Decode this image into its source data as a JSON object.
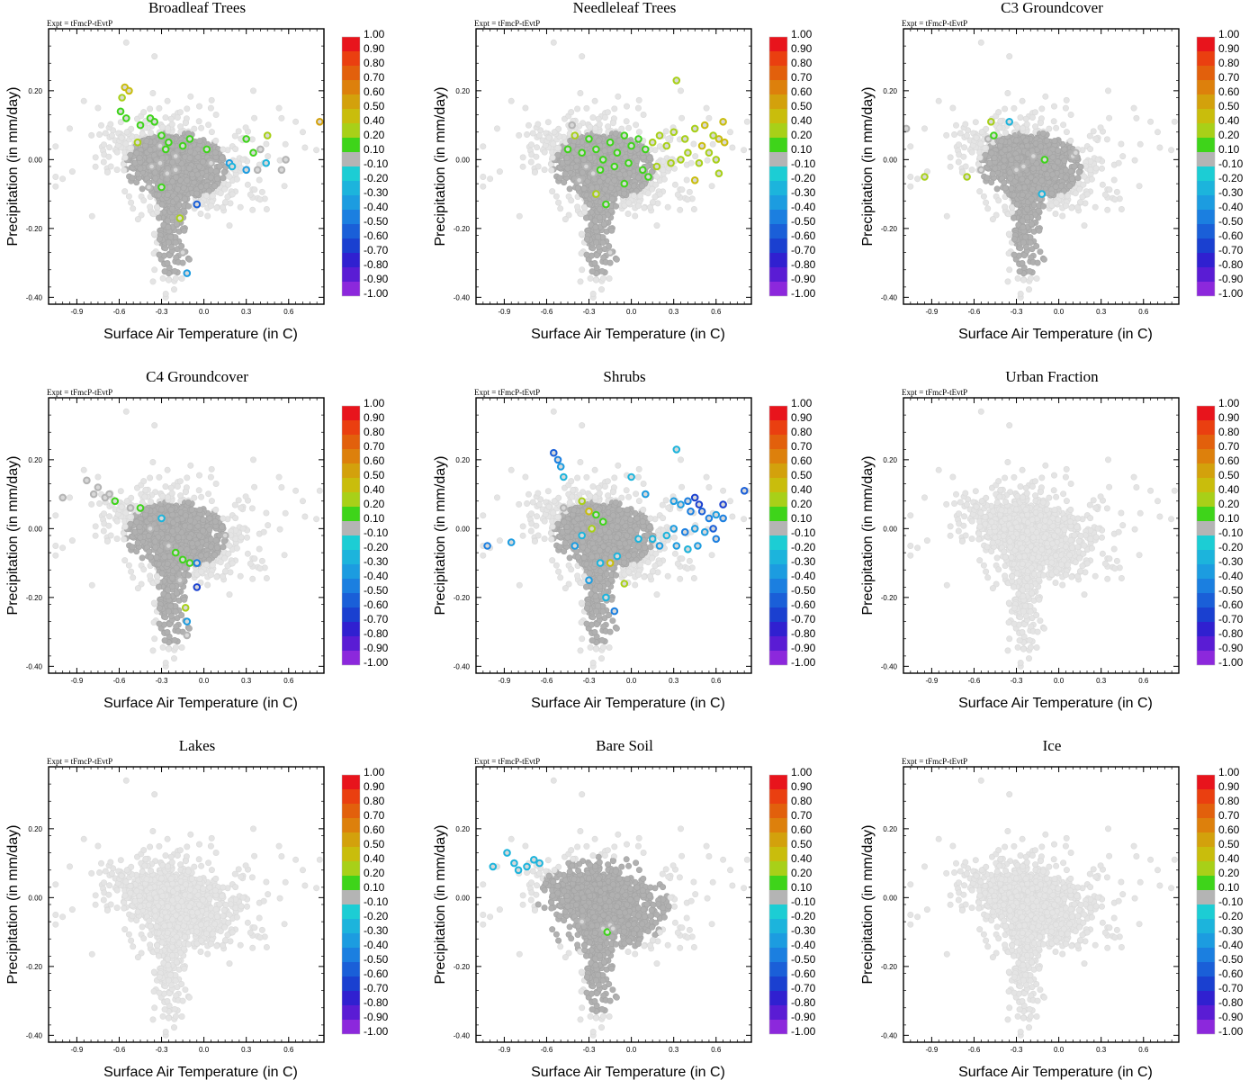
{
  "chart_data": {
    "type": "scatter",
    "layout": "3x3 grid of scatter panels",
    "experiment_label": "Expt = tFmcP-tEvtP",
    "xlabel": "Surface Air Temperature (in C)",
    "ylabel": "Precipitation (in mm/day)",
    "xlim": [
      -1.1,
      0.85
    ],
    "ylim": [
      -0.42,
      0.38
    ],
    "xticks": [
      "-0.9",
      "-0.6",
      "-0.3",
      "0.0",
      "0.3",
      "0.6"
    ],
    "xtick_values": [
      -0.9,
      -0.6,
      -0.3,
      0.0,
      0.3,
      0.6
    ],
    "yticks": [
      "-0.40",
      "-0.20",
      "0.00",
      "0.20"
    ],
    "ytick_values": [
      -0.4,
      -0.2,
      0.0,
      0.2
    ],
    "colorbar": {
      "labels": [
        "1.00",
        "0.90",
        "0.80",
        "0.70",
        "0.60",
        "0.50",
        "0.40",
        "0.20",
        "0.10",
        "-0.10",
        "-0.20",
        "-0.30",
        "-0.40",
        "-0.50",
        "-0.60",
        "-0.70",
        "-0.80",
        "-0.90",
        "-1.00"
      ],
      "colors": [
        "#e8141c",
        "#ea3f10",
        "#e2600c",
        "#dd800c",
        "#d3a10c",
        "#c9bd0c",
        "#a8d018",
        "#3ed41a",
        "#b4b4b4",
        "#1ccdd4",
        "#1cb4dc",
        "#1c9ce0",
        "#1b7fe0",
        "#1a5fd8",
        "#1a40d0",
        "#3020d0",
        "#5a1cd4",
        "#8c28dc"
      ]
    },
    "background_color": "#e4e4e4",
    "neutral_color": "#b0b0b0",
    "panels": [
      {
        "title": "Broadleaf Trees",
        "gray_band": "mid",
        "colored_points": [
          {
            "x": -0.56,
            "y": 0.21,
            "c": 0.5
          },
          {
            "x": -0.53,
            "y": 0.2,
            "c": 0.5
          },
          {
            "x": -0.58,
            "y": 0.18,
            "c": 0.4
          },
          {
            "x": -0.59,
            "y": 0.14,
            "c": 0.2
          },
          {
            "x": -0.55,
            "y": 0.12,
            "c": 0.2
          },
          {
            "x": -0.38,
            "y": 0.12,
            "c": 0.2
          },
          {
            "x": -0.35,
            "y": 0.11,
            "c": 0.2
          },
          {
            "x": -0.45,
            "y": 0.1,
            "c": 0.2
          },
          {
            "x": -0.3,
            "y": 0.07,
            "c": 0.2
          },
          {
            "x": -0.25,
            "y": 0.05,
            "c": 0.2
          },
          {
            "x": -0.47,
            "y": 0.05,
            "c": 0.4
          },
          {
            "x": -0.31,
            "y": 0.04,
            "c": 0.1
          },
          {
            "x": -0.27,
            "y": 0.03,
            "c": 0.2
          },
          {
            "x": -0.15,
            "y": 0.04,
            "c": 0.2
          },
          {
            "x": -0.1,
            "y": 0.06,
            "c": 0.2
          },
          {
            "x": 0.02,
            "y": 0.03,
            "c": 0.2
          },
          {
            "x": -0.2,
            "y": 0.01,
            "c": 0.1
          },
          {
            "x": -0.31,
            "y": -0.01,
            "c": 0.1
          },
          {
            "x": -0.37,
            "y": -0.02,
            "c": 0.1
          },
          {
            "x": -0.26,
            "y": -0.04,
            "c": 0.1
          },
          {
            "x": -0.39,
            "y": -0.08,
            "c": 0.1
          },
          {
            "x": -0.3,
            "y": -0.08,
            "c": 0.2
          },
          {
            "x": -0.2,
            "y": -0.03,
            "c": 0.1
          },
          {
            "x": 0.05,
            "y": -0.01,
            "c": 0.1
          },
          {
            "x": 0.18,
            "y": -0.01,
            "c": -0.3
          },
          {
            "x": 0.2,
            "y": -0.02,
            "c": -0.2
          },
          {
            "x": 0.3,
            "y": 0.06,
            "c": 0.2
          },
          {
            "x": 0.45,
            "y": 0.07,
            "c": 0.4
          },
          {
            "x": 0.4,
            "y": 0.03,
            "c": 0.1
          },
          {
            "x": 0.35,
            "y": 0.02,
            "c": 0.2
          },
          {
            "x": 0.38,
            "y": -0.03,
            "c": 0.1
          },
          {
            "x": 0.44,
            "y": -0.01,
            "c": -0.2
          },
          {
            "x": 0.55,
            "y": -0.03,
            "c": 0.1
          },
          {
            "x": 0.58,
            "y": 0.0,
            "c": 0.1
          },
          {
            "x": 0.3,
            "y": -0.03,
            "c": -0.3
          },
          {
            "x": -0.05,
            "y": -0.13,
            "c": -0.5
          },
          {
            "x": -0.17,
            "y": -0.17,
            "c": 0.4
          },
          {
            "x": -0.15,
            "y": -0.27,
            "c": 0.1
          },
          {
            "x": -0.12,
            "y": -0.33,
            "c": -0.3
          },
          {
            "x": 0.82,
            "y": 0.11,
            "c": 0.6
          }
        ]
      },
      {
        "title": "Needleleaf Trees",
        "gray_band": "mid",
        "colored_points": [
          {
            "x": 0.32,
            "y": 0.23,
            "c": 0.3
          },
          {
            "x": 0.65,
            "y": 0.11,
            "c": 0.5
          },
          {
            "x": 0.52,
            "y": 0.1,
            "c": 0.5
          },
          {
            "x": 0.45,
            "y": 0.09,
            "c": 0.4
          },
          {
            "x": 0.62,
            "y": 0.06,
            "c": 0.5
          },
          {
            "x": 0.58,
            "y": 0.07,
            "c": 0.4
          },
          {
            "x": 0.66,
            "y": 0.05,
            "c": 0.5
          },
          {
            "x": 0.55,
            "y": 0.02,
            "c": 0.4
          },
          {
            "x": 0.6,
            "y": 0.0,
            "c": 0.4
          },
          {
            "x": 0.48,
            "y": -0.01,
            "c": 0.4
          },
          {
            "x": 0.62,
            "y": -0.04,
            "c": 0.4
          },
          {
            "x": 0.45,
            "y": -0.06,
            "c": 0.5
          },
          {
            "x": 0.38,
            "y": 0.06,
            "c": 0.4
          },
          {
            "x": 0.3,
            "y": 0.08,
            "c": 0.4
          },
          {
            "x": 0.25,
            "y": 0.04,
            "c": 0.3
          },
          {
            "x": 0.2,
            "y": 0.07,
            "c": 0.3
          },
          {
            "x": 0.15,
            "y": 0.05,
            "c": 0.3
          },
          {
            "x": 0.1,
            "y": 0.03,
            "c": 0.2
          },
          {
            "x": 0.05,
            "y": 0.06,
            "c": 0.2
          },
          {
            "x": 0.0,
            "y": 0.04,
            "c": 0.2
          },
          {
            "x": -0.05,
            "y": 0.07,
            "c": 0.2
          },
          {
            "x": -0.1,
            "y": 0.02,
            "c": 0.2
          },
          {
            "x": -0.15,
            "y": 0.05,
            "c": 0.2
          },
          {
            "x": -0.2,
            "y": 0.0,
            "c": 0.2
          },
          {
            "x": -0.25,
            "y": 0.03,
            "c": 0.2
          },
          {
            "x": -0.3,
            "y": 0.06,
            "c": 0.2
          },
          {
            "x": -0.35,
            "y": 0.02,
            "c": 0.2
          },
          {
            "x": -0.4,
            "y": 0.07,
            "c": 0.4
          },
          {
            "x": -0.42,
            "y": 0.1,
            "c": 0.1
          },
          {
            "x": -0.45,
            "y": 0.03,
            "c": 0.2
          },
          {
            "x": -0.32,
            "y": -0.02,
            "c": 0.1
          },
          {
            "x": -0.27,
            "y": -0.04,
            "c": 0.1
          },
          {
            "x": -0.22,
            "y": -0.03,
            "c": 0.2
          },
          {
            "x": -0.12,
            "y": -0.02,
            "c": 0.2
          },
          {
            "x": -0.02,
            "y": -0.01,
            "c": 0.2
          },
          {
            "x": 0.08,
            "y": -0.03,
            "c": 0.2
          },
          {
            "x": 0.18,
            "y": -0.02,
            "c": 0.3
          },
          {
            "x": 0.28,
            "y": -0.01,
            "c": 0.3
          },
          {
            "x": 0.35,
            "y": 0.0,
            "c": 0.3
          },
          {
            "x": 0.12,
            "y": -0.05,
            "c": 0.2
          },
          {
            "x": -0.37,
            "y": -0.06,
            "c": 0.1
          },
          {
            "x": -0.05,
            "y": -0.07,
            "c": 0.2
          },
          {
            "x": -0.25,
            "y": -0.1,
            "c": 0.4
          },
          {
            "x": -0.18,
            "y": -0.13,
            "c": 0.2
          },
          {
            "x": -0.15,
            "y": -0.27,
            "c": 0.1
          },
          {
            "x": 0.4,
            "y": 0.02,
            "c": 0.4
          },
          {
            "x": 0.5,
            "y": 0.04,
            "c": 0.5
          }
        ]
      },
      {
        "title": "C3 Groundcover",
        "gray_band": "mid",
        "colored_points": [
          {
            "x": -1.08,
            "y": 0.09,
            "c": 0.1
          },
          {
            "x": -0.95,
            "y": -0.05,
            "c": 0.4
          },
          {
            "x": -0.65,
            "y": -0.05,
            "c": 0.4
          },
          {
            "x": -0.48,
            "y": 0.11,
            "c": 0.4
          },
          {
            "x": -0.5,
            "y": 0.06,
            "c": 0.1
          },
          {
            "x": -0.46,
            "y": 0.07,
            "c": 0.2
          },
          {
            "x": -0.3,
            "y": -0.03,
            "c": 0.1
          },
          {
            "x": -0.25,
            "y": -0.02,
            "c": 0.1
          },
          {
            "x": -0.18,
            "y": 0.01,
            "c": 0.1
          },
          {
            "x": -0.1,
            "y": 0.0,
            "c": 0.2
          },
          {
            "x": -0.55,
            "y": -0.03,
            "c": 0.1
          },
          {
            "x": 0.1,
            "y": 0.01,
            "c": 0.1
          },
          {
            "x": 0.12,
            "y": 0.02,
            "c": 0.1
          },
          {
            "x": -0.35,
            "y": 0.11,
            "c": -0.2
          },
          {
            "x": -0.12,
            "y": -0.1,
            "c": -0.2
          }
        ]
      },
      {
        "title": "C4 Groundcover",
        "gray_band": "mid",
        "colored_points": [
          {
            "x": -1.0,
            "y": 0.09,
            "c": 0.1
          },
          {
            "x": -0.83,
            "y": 0.14,
            "c": 0.1
          },
          {
            "x": -0.78,
            "y": 0.1,
            "c": 0.1
          },
          {
            "x": -0.75,
            "y": 0.12,
            "c": 0.1
          },
          {
            "x": -0.7,
            "y": 0.09,
            "c": 0.1
          },
          {
            "x": -0.67,
            "y": 0.1,
            "c": 0.1
          },
          {
            "x": -0.63,
            "y": 0.08,
            "c": 0.2
          },
          {
            "x": -0.52,
            "y": 0.06,
            "c": 0.1
          },
          {
            "x": -0.45,
            "y": 0.06,
            "c": 0.2
          },
          {
            "x": -0.25,
            "y": -0.05,
            "c": 0.1
          },
          {
            "x": -0.2,
            "y": -0.07,
            "c": 0.2
          },
          {
            "x": -0.3,
            "y": 0.03,
            "c": -0.2
          },
          {
            "x": -0.15,
            "y": -0.09,
            "c": 0.2
          },
          {
            "x": -0.1,
            "y": -0.1,
            "c": 0.2
          },
          {
            "x": -0.05,
            "y": -0.1,
            "c": -0.4
          },
          {
            "x": -0.17,
            "y": -0.15,
            "c": 0.1
          },
          {
            "x": -0.13,
            "y": -0.23,
            "c": 0.4
          },
          {
            "x": -0.12,
            "y": -0.27,
            "c": -0.3
          },
          {
            "x": -0.12,
            "y": -0.31,
            "c": 0.1
          },
          {
            "x": 0.15,
            "y": -0.02,
            "c": 0.1
          },
          {
            "x": -0.05,
            "y": -0.17,
            "c": -0.6
          },
          {
            "x": -0.38,
            "y": 0.0,
            "c": 0.1
          }
        ]
      },
      {
        "title": "Shrubs",
        "gray_band": "mid",
        "colored_points": [
          {
            "x": -0.55,
            "y": 0.22,
            "c": -0.5
          },
          {
            "x": -0.52,
            "y": 0.2,
            "c": -0.4
          },
          {
            "x": -0.5,
            "y": 0.18,
            "c": -0.3
          },
          {
            "x": -0.48,
            "y": 0.15,
            "c": -0.2
          },
          {
            "x": -1.02,
            "y": -0.05,
            "c": -0.4
          },
          {
            "x": -0.85,
            "y": -0.04,
            "c": -0.3
          },
          {
            "x": -0.48,
            "y": 0.06,
            "c": 0.1
          },
          {
            "x": -0.35,
            "y": 0.08,
            "c": 0.4
          },
          {
            "x": -0.3,
            "y": 0.05,
            "c": 0.5
          },
          {
            "x": -0.25,
            "y": 0.04,
            "c": 0.2
          },
          {
            "x": -0.28,
            "y": 0.0,
            "c": 0.3
          },
          {
            "x": -0.2,
            "y": 0.02,
            "c": 0.2
          },
          {
            "x": -0.35,
            "y": -0.02,
            "c": -0.2
          },
          {
            "x": -0.4,
            "y": -0.05,
            "c": -0.3
          },
          {
            "x": -0.22,
            "y": -0.1,
            "c": -0.2
          },
          {
            "x": -0.15,
            "y": -0.1,
            "c": 0.5
          },
          {
            "x": -0.1,
            "y": -0.08,
            "c": -0.2
          },
          {
            "x": -0.3,
            "y": -0.15,
            "c": -0.3
          },
          {
            "x": -0.18,
            "y": -0.2,
            "c": -0.2
          },
          {
            "x": -0.12,
            "y": -0.24,
            "c": -0.4
          },
          {
            "x": -0.05,
            "y": -0.16,
            "c": 0.4
          },
          {
            "x": 0.0,
            "y": 0.15,
            "c": -0.2
          },
          {
            "x": 0.1,
            "y": 0.1,
            "c": -0.3
          },
          {
            "x": 0.32,
            "y": 0.23,
            "c": -0.2
          },
          {
            "x": 0.3,
            "y": 0.08,
            "c": -0.3
          },
          {
            "x": 0.35,
            "y": 0.07,
            "c": -0.3
          },
          {
            "x": 0.4,
            "y": 0.08,
            "c": -0.4
          },
          {
            "x": 0.45,
            "y": 0.09,
            "c": -0.6
          },
          {
            "x": 0.48,
            "y": 0.07,
            "c": -0.6
          },
          {
            "x": 0.42,
            "y": 0.05,
            "c": -0.4
          },
          {
            "x": 0.5,
            "y": 0.05,
            "c": -0.5
          },
          {
            "x": 0.55,
            "y": 0.03,
            "c": -0.4
          },
          {
            "x": 0.6,
            "y": 0.04,
            "c": -0.3
          },
          {
            "x": 0.65,
            "y": 0.03,
            "c": -0.4
          },
          {
            "x": 0.58,
            "y": 0.0,
            "c": -0.5
          },
          {
            "x": 0.52,
            "y": -0.01,
            "c": -0.3
          },
          {
            "x": 0.45,
            "y": 0.0,
            "c": -0.3
          },
          {
            "x": 0.38,
            "y": -0.01,
            "c": -0.4
          },
          {
            "x": 0.3,
            "y": 0.0,
            "c": -0.3
          },
          {
            "x": 0.25,
            "y": -0.02,
            "c": -0.2
          },
          {
            "x": 0.32,
            "y": -0.05,
            "c": -0.3
          },
          {
            "x": 0.4,
            "y": -0.06,
            "c": -0.2
          },
          {
            "x": 0.47,
            "y": -0.05,
            "c": -0.3
          },
          {
            "x": 0.6,
            "y": -0.03,
            "c": -0.4
          },
          {
            "x": 0.65,
            "y": 0.07,
            "c": -0.6
          },
          {
            "x": 0.8,
            "y": 0.11,
            "c": -0.5
          },
          {
            "x": 0.15,
            "y": -0.03,
            "c": -0.2
          },
          {
            "x": 0.2,
            "y": -0.05,
            "c": -0.3
          },
          {
            "x": 0.05,
            "y": -0.03,
            "c": -0.2
          }
        ]
      },
      {
        "title": "Urban Fraction",
        "gray_band": "none",
        "colored_points": []
      },
      {
        "title": "Lakes",
        "gray_band": "none",
        "colored_points": []
      },
      {
        "title": "Bare Soil",
        "gray_band": "wide",
        "colored_points": [
          {
            "x": -0.98,
            "y": 0.09,
            "c": -0.2
          },
          {
            "x": -0.88,
            "y": 0.13,
            "c": -0.2
          },
          {
            "x": -0.83,
            "y": 0.1,
            "c": -0.2
          },
          {
            "x": -0.8,
            "y": 0.08,
            "c": -0.2
          },
          {
            "x": -0.74,
            "y": 0.09,
            "c": -0.2
          },
          {
            "x": -0.69,
            "y": 0.11,
            "c": -0.2
          },
          {
            "x": -0.65,
            "y": 0.1,
            "c": -0.2
          },
          {
            "x": -0.35,
            "y": -0.07,
            "c": 0.1
          },
          {
            "x": -0.2,
            "y": -0.09,
            "c": 0.1
          },
          {
            "x": -0.17,
            "y": -0.1,
            "c": 0.2
          },
          {
            "x": -0.15,
            "y": -0.08,
            "c": 0.1
          },
          {
            "x": -0.13,
            "y": -0.09,
            "c": 0.1
          }
        ]
      },
      {
        "title": "Ice",
        "gray_band": "none",
        "colored_points": []
      }
    ]
  }
}
